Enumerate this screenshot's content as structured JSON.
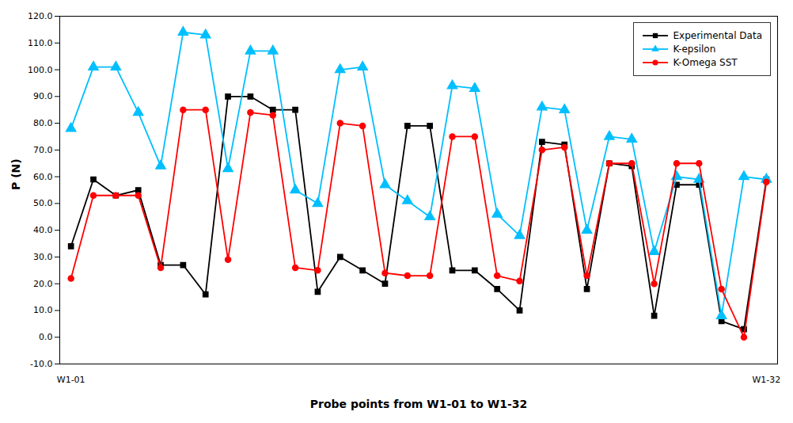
{
  "chart_data": {
    "type": "line",
    "xlabel": "Probe points from W1-01 to W1-32",
    "ylabel": "P (N)",
    "x": [
      1,
      2,
      3,
      4,
      5,
      6,
      7,
      8,
      9,
      10,
      11,
      12,
      13,
      14,
      15,
      16,
      17,
      18,
      19,
      20,
      21,
      22,
      23,
      24,
      25,
      26,
      27,
      28,
      29,
      30,
      31,
      32
    ],
    "series": [
      {
        "name": "Experimental Data",
        "color": "#000000",
        "marker": "square",
        "values": [
          34,
          59,
          53,
          55,
          27,
          27,
          16,
          90,
          90,
          85,
          85,
          17,
          30,
          25,
          20,
          79,
          79,
          25,
          25,
          18,
          10,
          73,
          72,
          18,
          65,
          64,
          8,
          57,
          57,
          6,
          3,
          59
        ]
      },
      {
        "name": "K-epsilon",
        "color": "#00BFFF",
        "marker": "triangle",
        "values": [
          78,
          101,
          101,
          84,
          64,
          114,
          113,
          63,
          107,
          107,
          55,
          50,
          100,
          101,
          57,
          51,
          45,
          94,
          93,
          46,
          38,
          86,
          85,
          40,
          75,
          74,
          32,
          60,
          59,
          8,
          60,
          59
        ]
      },
      {
        "name": "K-Omega SST",
        "color": "#FF0000",
        "marker": "circle",
        "values": [
          22,
          53,
          53,
          53,
          26,
          85,
          85,
          29,
          84,
          83,
          26,
          25,
          80,
          79,
          24,
          23,
          23,
          75,
          75,
          23,
          21,
          70,
          71,
          23,
          65,
          65,
          20,
          65,
          65,
          18,
          0,
          58
        ]
      }
    ],
    "annotations": [
      {
        "text": "W1-01",
        "x": 1
      },
      {
        "text": "W1-32",
        "x": 32
      }
    ],
    "xlim": [
      0.5,
      32.5
    ],
    "xticks": [],
    "ylim": [
      -10,
      120
    ],
    "yticks": [
      {
        "value": -10,
        "label": "-10.0"
      },
      {
        "value": 0,
        "label": "0.0"
      },
      {
        "value": 10,
        "label": "10.0"
      },
      {
        "value": 20,
        "label": "20.0"
      },
      {
        "value": 30,
        "label": "30.0"
      },
      {
        "value": 40,
        "label": "40.0"
      },
      {
        "value": 50,
        "label": "50.0"
      },
      {
        "value": 60,
        "label": "60.0"
      },
      {
        "value": 70,
        "label": "70.0"
      },
      {
        "value": 80,
        "label": "80.0"
      },
      {
        "value": 90,
        "label": "90.0"
      },
      {
        "value": 100,
        "label": "100.0"
      },
      {
        "value": 110,
        "label": "110.0"
      },
      {
        "value": 120,
        "label": "120.0"
      }
    ],
    "tick_labels": "y",
    "grid": false,
    "legend": "upper right"
  }
}
